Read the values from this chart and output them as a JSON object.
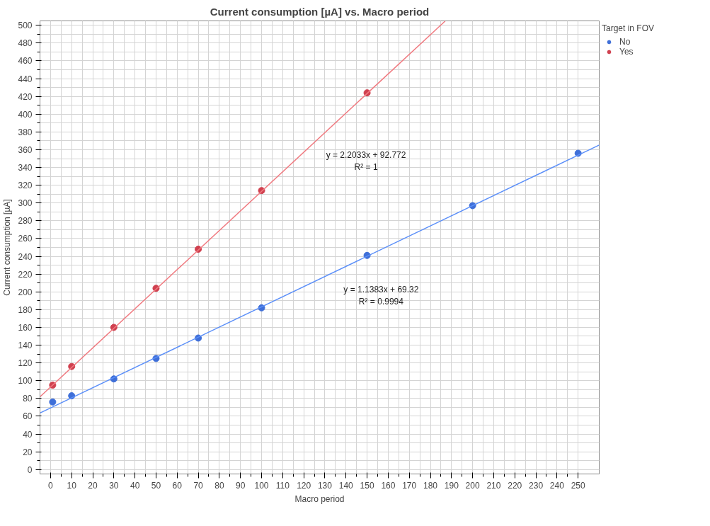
{
  "chart_data": {
    "type": "scatter",
    "title": "Current consumption [µA] vs. Macro period",
    "xlabel": "Macro period",
    "ylabel": "Current consumption [µA]",
    "legend_title": "Target in FOV",
    "legend": "top right",
    "grid": true,
    "x": [
      1,
      10,
      30,
      50,
      70,
      100,
      150,
      200,
      250
    ],
    "series": [
      {
        "name": "No",
        "color": "#3f6fd8",
        "values": [
          76,
          83,
          102,
          125,
          148,
          182,
          241,
          297,
          356
        ]
      },
      {
        "name": "Yes",
        "color": "#d0404f",
        "values": [
          95,
          116,
          160,
          204,
          248,
          314,
          424,
          null,
          null
        ]
      },
      {
        "type": "line",
        "color": "#5b8ff9",
        "x": [
          -5,
          260
        ],
        "values": [
          63.6,
          365.3
        ]
      },
      {
        "type": "line",
        "color": "#f07a80",
        "x": [
          -5,
          187
        ],
        "values": [
          81.8,
          504.8
        ]
      }
    ],
    "annotations": [
      "y = 2.2033x + 92.772\nR² = 1",
      "y = 1.1383x + 69.32\nR² = 0.9994"
    ],
    "xlim": [
      -5,
      260
    ],
    "ylim": [
      -5,
      505
    ],
    "xticks": [
      0,
      10,
      20,
      30,
      40,
      50,
      60,
      70,
      80,
      90,
      100,
      110,
      120,
      130,
      140,
      150,
      160,
      170,
      180,
      190,
      200,
      210,
      220,
      230,
      240,
      250
    ],
    "yticks": [
      0,
      20,
      40,
      60,
      80,
      100,
      120,
      140,
      160,
      180,
      200,
      220,
      240,
      260,
      280,
      300,
      320,
      340,
      360,
      380,
      400,
      420,
      440,
      460,
      480,
      500
    ]
  }
}
